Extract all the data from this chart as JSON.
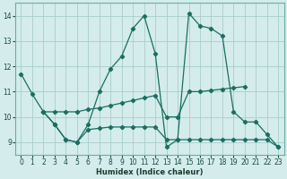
{
  "xlabel": "Humidex (Indice chaleur)",
  "xlim": [
    -0.5,
    23.5
  ],
  "ylim": [
    8.5,
    14.5
  ],
  "yticks": [
    9,
    10,
    11,
    12,
    13,
    14
  ],
  "xticks": [
    0,
    1,
    2,
    3,
    4,
    5,
    6,
    7,
    8,
    9,
    10,
    11,
    12,
    13,
    14,
    15,
    16,
    17,
    18,
    19,
    20,
    21,
    22,
    23
  ],
  "bg_color": "#d4eceb",
  "grid_color": "#a8cdcc",
  "line_color": "#1a6e62",
  "lines": [
    {
      "x": [
        0,
        1,
        2,
        3,
        4,
        5,
        6,
        7,
        8,
        9,
        10,
        11,
        12,
        13,
        14,
        15,
        16,
        17,
        18,
        19,
        20,
        21,
        22,
        23
      ],
      "y": [
        11.7,
        10.9,
        10.2,
        9.7,
        9.1,
        9.0,
        9.7,
        11.0,
        11.9,
        12.4,
        13.5,
        14.0,
        12.5,
        8.8,
        9.1,
        14.1,
        13.6,
        13.5,
        13.2,
        10.2,
        9.8,
        9.8,
        9.3,
        8.8
      ]
    },
    {
      "x": [
        2,
        3,
        4,
        5,
        6,
        7,
        8,
        9,
        10,
        11,
        12,
        13,
        14,
        15,
        16,
        17,
        18,
        19,
        20
      ],
      "y": [
        10.2,
        10.2,
        10.2,
        10.2,
        10.3,
        10.35,
        10.45,
        10.55,
        10.65,
        10.75,
        10.85,
        10.0,
        10.0,
        11.0,
        11.0,
        11.05,
        11.1,
        11.15,
        11.2
      ]
    },
    {
      "x": [
        2,
        3,
        4,
        5,
        6,
        7,
        8,
        9,
        10,
        11,
        12,
        13,
        14,
        15,
        16,
        17,
        18,
        19,
        20,
        21,
        22,
        23
      ],
      "y": [
        10.2,
        9.7,
        9.1,
        9.0,
        9.5,
        9.55,
        9.6,
        9.6,
        9.6,
        9.6,
        9.6,
        9.1,
        9.1,
        9.1,
        9.1,
        9.1,
        9.1,
        9.1,
        9.1,
        9.1,
        9.1,
        8.8
      ]
    }
  ]
}
